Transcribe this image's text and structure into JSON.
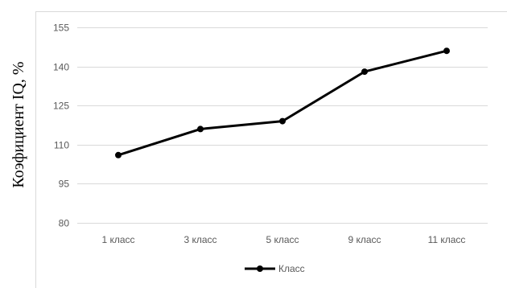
{
  "chart_data": {
    "type": "line",
    "title": "",
    "xlabel": "",
    "ylabel": "Коэфициент IQ, %",
    "categories": [
      "1 класс",
      "3 класс",
      "5 класс",
      "9 класс",
      "11 класс"
    ],
    "series": [
      {
        "name": "Класс",
        "values": [
          106,
          116,
          119,
          138,
          146
        ],
        "color": "#000000"
      }
    ],
    "ylim": [
      80,
      155
    ],
    "yticks": [
      80,
      95,
      110,
      125,
      140,
      155
    ],
    "grid": true,
    "legend_position": "bottom",
    "colors": {
      "grid": "#d9d9d9",
      "tick_text": "#595959",
      "border": "#d9d9d9"
    }
  }
}
